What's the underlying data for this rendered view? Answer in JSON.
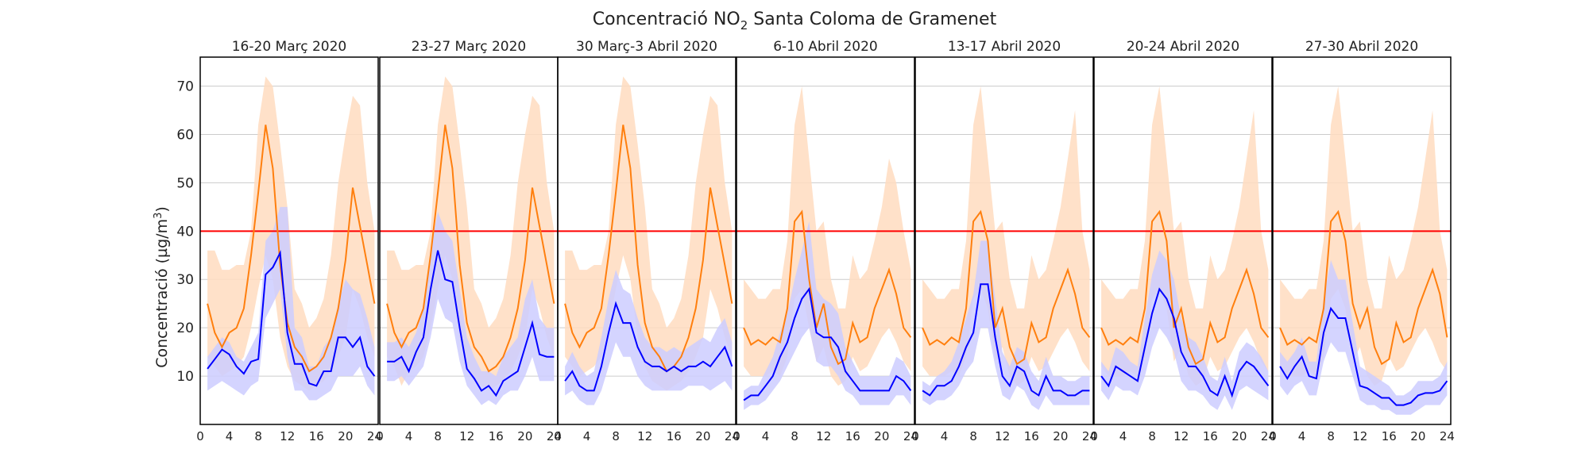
{
  "chart_data": {
    "type": "line",
    "title": "Concentració NO",
    "title_subscript": "2",
    "title_rest": " Santa Coloma de Gramenet",
    "ylabel": "Concentració (µg/m",
    "ylabel_sup": "3",
    "ylabel_end": ")",
    "xlim": [
      0,
      24.5
    ],
    "ylim": [
      0,
      76
    ],
    "xticks": [
      "0",
      "4",
      "8",
      "12",
      "16",
      "20",
      "24"
    ],
    "yticks": [
      "10",
      "20",
      "30",
      "40",
      "50",
      "60",
      "70"
    ],
    "grid": "horizontal",
    "reference_line": {
      "y": 40,
      "color": "#ff0000"
    },
    "colors": {
      "blue_line": "#0000ff",
      "blue_band": "#ccccff",
      "orange_line": "#ff7f0e",
      "orange_band": "#ffdcc0",
      "grid": "#cccccc",
      "frame": "#000000"
    },
    "x": [
      1,
      2,
      3,
      4,
      5,
      6,
      7,
      8,
      9,
      10,
      11,
      12,
      13,
      14,
      15,
      16,
      17,
      18,
      19,
      20,
      21,
      22,
      23,
      24
    ],
    "panels": [
      {
        "title": "16-20 Març 2020",
        "orange": {
          "mean": [
            25,
            19,
            16,
            19,
            20,
            24,
            35,
            48,
            62,
            53,
            33,
            21,
            16,
            14,
            11,
            12,
            14,
            18,
            24,
            34,
            49,
            41,
            33,
            25
          ],
          "upper": [
            36,
            36,
            32,
            32,
            33,
            33,
            40,
            62,
            72,
            70,
            58,
            45,
            28,
            25,
            20,
            22,
            26,
            35,
            50,
            60,
            68,
            66,
            50,
            40
          ],
          "lower": [
            14,
            12,
            10,
            11,
            12,
            14,
            20,
            28,
            35,
            30,
            18,
            12,
            9,
            8,
            7,
            8,
            9,
            11,
            14,
            18,
            28,
            24,
            18,
            14
          ]
        },
        "blue": {
          "mean": [
            11.5,
            13.5,
            15.5,
            14.5,
            12,
            10.5,
            13,
            13.5,
            31,
            32.5,
            35.5,
            19,
            12.5,
            12.5,
            8.5,
            8,
            11,
            11,
            18,
            18,
            16,
            18,
            12,
            10
          ],
          "upper": [
            14,
            16,
            18,
            17,
            14,
            13,
            16,
            19,
            38,
            40,
            45,
            45,
            20,
            18,
            12,
            12,
            16,
            18,
            25,
            30,
            28,
            27,
            22,
            16
          ],
          "lower": [
            7,
            8,
            9,
            8,
            7,
            6,
            8,
            9,
            22,
            25,
            28,
            14,
            7,
            7,
            5,
            5,
            6,
            7,
            10,
            10,
            10,
            12,
            8,
            6
          ]
        }
      },
      {
        "title": "23-27 Març 2020",
        "orange": {
          "mean": [
            25,
            19,
            16,
            19,
            20,
            24,
            35,
            48,
            62,
            53,
            33,
            21,
            16,
            14,
            11,
            12,
            14,
            18,
            24,
            34,
            49,
            41,
            33,
            25
          ],
          "upper": [
            36,
            36,
            32,
            32,
            33,
            33,
            40,
            62,
            72,
            70,
            58,
            45,
            28,
            25,
            20,
            22,
            26,
            35,
            50,
            60,
            68,
            66,
            50,
            40
          ],
          "lower": [
            14,
            12,
            8,
            11,
            12,
            14,
            20,
            28,
            35,
            30,
            18,
            12,
            9,
            8,
            7,
            8,
            9,
            11,
            14,
            18,
            28,
            24,
            18,
            14
          ]
        },
        "blue": {
          "mean": [
            13,
            13,
            14,
            11,
            15,
            18,
            28,
            36,
            30,
            29.5,
            20,
            11.5,
            9.5,
            7,
            8,
            6,
            9,
            10,
            11,
            16,
            21,
            14.5,
            14,
            14
          ],
          "upper": [
            17,
            17,
            18,
            16,
            19,
            24,
            36,
            44,
            40,
            38,
            28,
            18,
            14,
            11,
            11,
            10,
            14,
            16,
            18,
            26,
            30,
            22,
            20,
            20
          ],
          "lower": [
            9,
            9,
            10,
            8,
            10,
            12,
            18,
            26,
            22,
            21,
            13,
            8,
            6,
            4,
            5,
            4,
            6,
            7,
            7,
            10,
            14,
            9,
            9,
            9
          ]
        }
      },
      {
        "title": "30 Març-3 Abril 2020",
        "orange": {
          "mean": [
            25,
            19,
            16,
            19,
            20,
            24,
            35,
            48,
            62,
            53,
            33,
            21,
            16,
            14,
            11,
            12,
            14,
            18,
            24,
            34,
            49,
            41,
            33,
            25
          ],
          "upper": [
            36,
            36,
            32,
            32,
            33,
            33,
            40,
            62,
            72,
            70,
            58,
            45,
            28,
            25,
            20,
            22,
            26,
            35,
            50,
            60,
            68,
            66,
            50,
            40
          ],
          "lower": [
            14,
            12,
            10,
            11,
            12,
            14,
            20,
            28,
            35,
            30,
            18,
            12,
            9,
            8,
            7,
            8,
            9,
            11,
            14,
            18,
            28,
            24,
            18,
            14
          ]
        },
        "blue": {
          "mean": [
            9,
            11,
            8,
            7,
            7,
            12,
            19,
            25,
            21,
            21,
            16,
            13,
            12,
            12,
            11,
            12,
            11,
            12,
            12,
            13,
            12,
            14,
            16,
            12
          ],
          "upper": [
            12,
            15,
            12,
            10,
            11,
            18,
            26,
            32,
            28,
            27,
            22,
            18,
            16,
            16,
            15,
            16,
            15,
            16,
            17,
            18,
            17,
            20,
            22,
            17
          ],
          "lower": [
            6,
            7,
            5,
            4,
            4,
            7,
            12,
            17,
            14,
            14,
            10,
            8,
            7,
            7,
            7,
            7,
            7,
            8,
            8,
            8,
            7,
            8,
            9,
            7
          ]
        }
      },
      {
        "title": "6-10 Abril 2020",
        "orange": {
          "mean": [
            20,
            16.5,
            17.5,
            16.5,
            18,
            17,
            24,
            42,
            44,
            30,
            20,
            25,
            16,
            12.5,
            13.5,
            21,
            17,
            18,
            24,
            28,
            32,
            27,
            20,
            18
          ],
          "upper": [
            30,
            28,
            26,
            26,
            28,
            28,
            38,
            62,
            70,
            55,
            40,
            42,
            30,
            24,
            24,
            35,
            30,
            32,
            38,
            45,
            55,
            50,
            40,
            32
          ],
          "lower": [
            12,
            10,
            10,
            10,
            11,
            10,
            14,
            26,
            28,
            20,
            13,
            16,
            10,
            8,
            9,
            14,
            11,
            12,
            15,
            18,
            20,
            17,
            13,
            11
          ]
        },
        "blue": {
          "mean": [
            5,
            6,
            6,
            8,
            10,
            14,
            17,
            22,
            26,
            28,
            19,
            18,
            18,
            16,
            11,
            9,
            7,
            7,
            7,
            7,
            7,
            10,
            9,
            7
          ],
          "upper": [
            7,
            8,
            8,
            11,
            14,
            19,
            23,
            30,
            36,
            42,
            28,
            26,
            25,
            23,
            16,
            13,
            10,
            10,
            10,
            10,
            10,
            14,
            13,
            10
          ],
          "lower": [
            3,
            4,
            4,
            5,
            7,
            9,
            12,
            15,
            18,
            20,
            13,
            12,
            12,
            10,
            7,
            6,
            4,
            4,
            4,
            4,
            4,
            6,
            6,
            4
          ]
        }
      },
      {
        "title": "13-17 Abril 2020",
        "orange": {
          "mean": [
            20,
            16.5,
            17.5,
            16.5,
            18,
            17,
            24,
            42,
            44,
            38,
            20,
            24,
            16,
            12.5,
            13.5,
            21,
            17,
            18,
            24,
            28,
            32,
            27,
            20,
            18
          ],
          "upper": [
            30,
            28,
            26,
            26,
            28,
            28,
            38,
            62,
            70,
            55,
            40,
            42,
            30,
            24,
            24,
            35,
            30,
            32,
            38,
            45,
            55,
            65,
            40,
            32
          ],
          "lower": [
            12,
            10,
            10,
            10,
            11,
            10,
            14,
            26,
            28,
            24,
            13,
            16,
            10,
            8,
            9,
            14,
            11,
            12,
            15,
            18,
            20,
            17,
            13,
            11
          ]
        },
        "blue": {
          "mean": [
            7,
            6,
            8,
            8,
            9,
            12,
            16,
            19,
            29,
            29,
            18,
            10,
            8,
            12,
            11,
            7,
            6,
            10,
            7,
            7,
            6,
            6,
            7,
            7
          ],
          "upper": [
            9,
            8,
            10,
            11,
            13,
            17,
            22,
            27,
            38,
            38,
            26,
            15,
            12,
            16,
            15,
            11,
            9,
            14,
            10,
            10,
            9,
            9,
            10,
            10
          ],
          "lower": [
            5,
            4,
            5,
            5,
            6,
            8,
            11,
            13,
            20,
            20,
            12,
            6,
            5,
            8,
            7,
            4,
            3,
            6,
            4,
            4,
            4,
            4,
            4,
            4
          ]
        }
      },
      {
        "title": "20-24 Abril 2020",
        "orange": {
          "mean": [
            20,
            16.5,
            17.5,
            16.5,
            18,
            17,
            24,
            42,
            44,
            38,
            20,
            24,
            16,
            12.5,
            13.5,
            21,
            17,
            18,
            24,
            28,
            32,
            27,
            20,
            18
          ],
          "upper": [
            30,
            28,
            26,
            26,
            28,
            28,
            38,
            62,
            70,
            55,
            40,
            42,
            30,
            24,
            24,
            35,
            30,
            32,
            38,
            45,
            55,
            65,
            40,
            32
          ],
          "lower": [
            12,
            10,
            10,
            10,
            11,
            10,
            14,
            26,
            28,
            24,
            13,
            16,
            10,
            8,
            9,
            14,
            11,
            12,
            15,
            18,
            20,
            17,
            13,
            11
          ]
        },
        "blue": {
          "mean": [
            10,
            8,
            12,
            11,
            10,
            9,
            16,
            23,
            28,
            26,
            22,
            15,
            12,
            12,
            10,
            7,
            6,
            10,
            6,
            11,
            13,
            12,
            10,
            8
          ],
          "upper": [
            13,
            11,
            16,
            15,
            13,
            12,
            22,
            31,
            36,
            34,
            30,
            22,
            18,
            17,
            14,
            10,
            9,
            14,
            9,
            15,
            17,
            16,
            14,
            11
          ],
          "lower": [
            7,
            5,
            8,
            7,
            7,
            6,
            10,
            16,
            20,
            18,
            15,
            9,
            7,
            7,
            6,
            4,
            3,
            6,
            3,
            7,
            8,
            7,
            6,
            5
          ]
        }
      },
      {
        "title": "27-30 Abril 2020",
        "orange": {
          "mean": [
            20,
            16.5,
            17.5,
            16.5,
            18,
            17,
            24,
            42,
            44,
            38,
            25,
            20,
            24,
            16,
            12.5,
            13.5,
            21,
            17,
            18,
            24,
            28,
            32,
            27,
            18
          ],
          "upper": [
            30,
            28,
            26,
            26,
            28,
            28,
            38,
            62,
            70,
            55,
            40,
            42,
            30,
            24,
            24,
            35,
            30,
            32,
            38,
            45,
            55,
            65,
            40,
            32
          ],
          "lower": [
            12,
            10,
            10,
            10,
            11,
            10,
            14,
            26,
            28,
            24,
            13,
            16,
            10,
            8,
            9,
            14,
            11,
            12,
            15,
            18,
            20,
            17,
            13,
            11
          ]
        },
        "blue": {
          "mean": [
            12,
            9.5,
            12,
            14,
            10,
            9.5,
            19,
            24,
            22,
            22,
            15,
            8,
            7.5,
            6.5,
            5.5,
            5.5,
            4,
            4,
            4.5,
            6,
            6.5,
            6.5,
            7,
            9
          ],
          "upper": [
            15,
            13,
            15,
            18,
            13,
            13,
            26,
            34,
            30,
            30,
            21,
            12,
            11,
            10,
            9,
            8,
            6,
            6,
            7,
            9,
            9,
            9,
            10,
            13
          ],
          "lower": [
            8,
            6,
            8,
            9,
            6,
            6,
            13,
            17,
            15,
            15,
            10,
            5,
            4,
            4,
            3,
            3,
            2,
            2,
            2,
            3,
            4,
            4,
            4,
            6
          ]
        }
      }
    ]
  }
}
